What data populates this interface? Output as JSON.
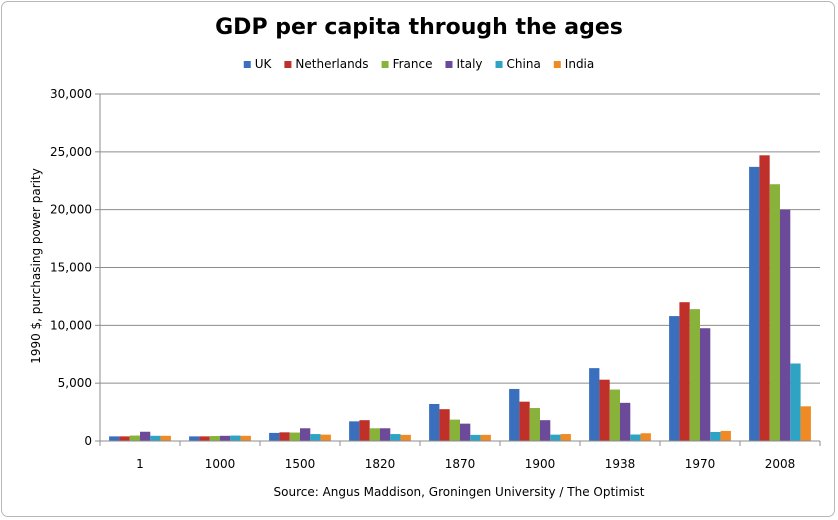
{
  "chart_data": {
    "type": "bar",
    "title": "GDP per capita through the ages",
    "ylabel": "1990 $, purchasing power parity",
    "xlabel": "Source: Angus Maddison, Groningen University / The Optimist",
    "ylim": [
      0,
      30000
    ],
    "y_ticks": [
      "0",
      "5,000",
      "10,000",
      "15,000",
      "20,000",
      "25,000",
      "30,000"
    ],
    "y_tick_values": [
      0,
      5000,
      10000,
      15000,
      20000,
      25000,
      30000
    ],
    "grid": true,
    "legend_position": "top",
    "categories": [
      "1",
      "1000",
      "1500",
      "1820",
      "1870",
      "1900",
      "1938",
      "1970",
      "2008"
    ],
    "series": [
      {
        "name": "UK",
        "color": "#3a6fbe",
        "values": [
          400,
          400,
          700,
          1700,
          3200,
          4500,
          6300,
          10800,
          23700
        ]
      },
      {
        "name": "Netherlands",
        "color": "#c0302a",
        "values": [
          400,
          400,
          750,
          1800,
          2750,
          3400,
          5300,
          12000,
          24700
        ]
      },
      {
        "name": "France",
        "color": "#89b23b",
        "values": [
          470,
          430,
          730,
          1100,
          1850,
          2850,
          4450,
          11400,
          22200
        ]
      },
      {
        "name": "Italy",
        "color": "#6a4a99",
        "values": [
          800,
          450,
          1100,
          1100,
          1500,
          1800,
          3300,
          9750,
          20000
        ]
      },
      {
        "name": "China",
        "color": "#2fa3c3",
        "values": [
          450,
          470,
          600,
          600,
          530,
          550,
          560,
          780,
          6700
        ]
      },
      {
        "name": "India",
        "color": "#f08a24",
        "values": [
          450,
          450,
          550,
          530,
          530,
          600,
          670,
          870,
          3000
        ]
      }
    ]
  }
}
